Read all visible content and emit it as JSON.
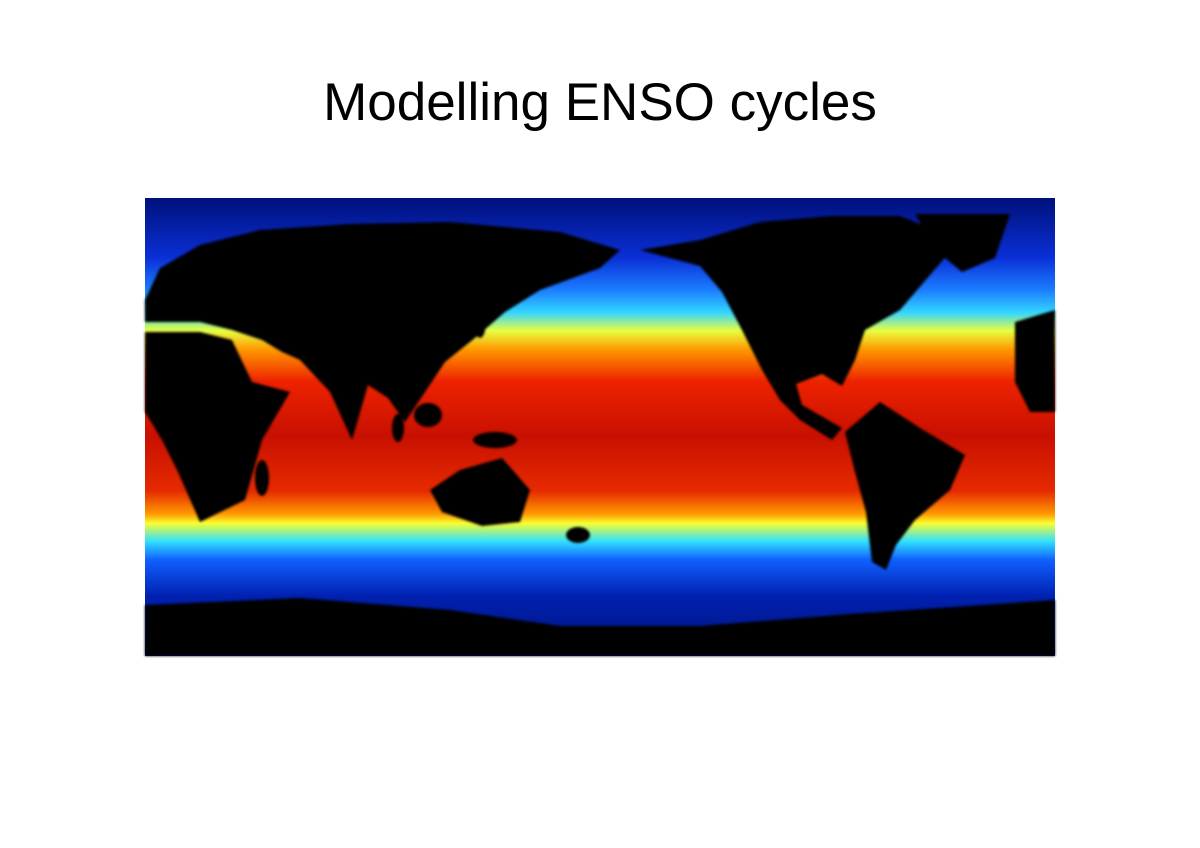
{
  "title": "Modelling ENSO cycles"
}
